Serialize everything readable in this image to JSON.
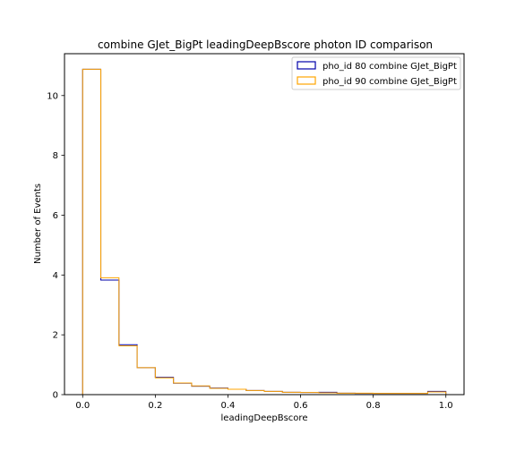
{
  "chart_data": {
    "type": "histogram",
    "title": "combine GJet_BigPt leadingDeepBscore photon ID comparison",
    "xlabel": "leadingDeepBscore",
    "ylabel": "Number of Events",
    "xlim": [
      -0.05,
      1.05
    ],
    "ylim": [
      0,
      11.4
    ],
    "x_ticks": [
      0.0,
      0.2,
      0.4,
      0.6,
      0.8,
      1.0
    ],
    "x_tick_labels": [
      "0.0",
      "0.2",
      "0.4",
      "0.6",
      "0.8",
      "1.0"
    ],
    "y_ticks": [
      0,
      2,
      4,
      6,
      8,
      10
    ],
    "y_tick_labels": [
      "0",
      "2",
      "4",
      "6",
      "8",
      "10"
    ],
    "bin_edges": [
      0.0,
      0.05,
      0.1,
      0.15,
      0.2,
      0.25,
      0.3,
      0.35,
      0.4,
      0.45,
      0.5,
      0.55,
      0.6,
      0.65,
      0.7,
      0.75,
      0.8,
      0.85,
      0.9,
      0.95,
      1.0
    ],
    "legend_position": "top-right",
    "series": [
      {
        "name": "pho_id 80 combine GJet_BigPt",
        "color": "#0000aa",
        "values": [
          10.88,
          3.83,
          1.67,
          0.9,
          0.58,
          0.38,
          0.28,
          0.22,
          0.18,
          0.14,
          0.11,
          0.08,
          0.07,
          0.08,
          0.05,
          0.04,
          0.04,
          0.04,
          0.04,
          0.11
        ]
      },
      {
        "name": "pho_id 90 combine GJet_BigPt",
        "color": "#ffa500",
        "values": [
          10.88,
          3.91,
          1.63,
          0.9,
          0.56,
          0.39,
          0.29,
          0.21,
          0.18,
          0.14,
          0.11,
          0.08,
          0.07,
          0.06,
          0.05,
          0.05,
          0.04,
          0.04,
          0.04,
          0.09
        ]
      }
    ]
  }
}
